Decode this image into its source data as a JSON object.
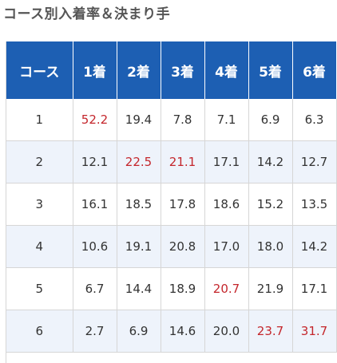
{
  "page": {
    "title": "コース別入着率＆決まり手"
  },
  "table": {
    "headers": [
      "コース",
      "1着",
      "2着",
      "3着",
      "4着",
      "5着",
      "6着"
    ],
    "rows": [
      {
        "course": "1",
        "values": [
          "52.2",
          "19.4",
          "7.8",
          "7.1",
          "6.9",
          "6.3"
        ]
      },
      {
        "course": "2",
        "values": [
          "12.1",
          "22.5",
          "21.1",
          "17.1",
          "14.2",
          "12.7"
        ]
      },
      {
        "course": "3",
        "values": [
          "16.1",
          "18.5",
          "17.8",
          "18.6",
          "15.2",
          "13.5"
        ]
      },
      {
        "course": "4",
        "values": [
          "10.6",
          "19.1",
          "20.8",
          "17.0",
          "18.0",
          "14.2"
        ]
      },
      {
        "course": "5",
        "values": [
          "6.7",
          "14.4",
          "18.9",
          "20.7",
          "21.9",
          "17.1"
        ]
      },
      {
        "course": "6",
        "values": [
          "2.7",
          "6.9",
          "14.6",
          "20.0",
          "23.7",
          "31.7"
        ]
      }
    ],
    "highlight_color": "#c4262c",
    "header_color": "#1d5fb3",
    "stripe_color": "#eef3fb"
  }
}
